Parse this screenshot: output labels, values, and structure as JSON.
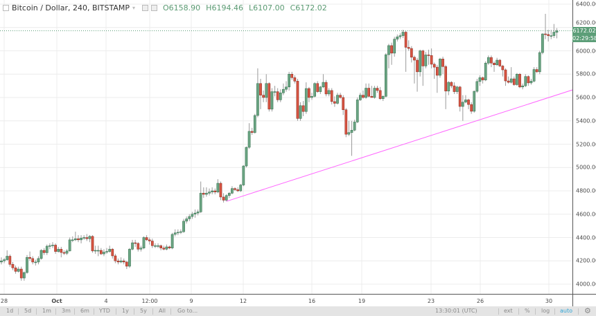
{
  "legend": {
    "symbol": "Bitcoin / Dollar, 240, BITSTAMP",
    "open_label": "O",
    "open": "6158.90",
    "high_label": "H",
    "high": "6194.46",
    "low_label": "L",
    "low": "6107.00",
    "close_label": "C",
    "close": "6172.02",
    "icons": [
      "collapse-icon",
      "dropdown-icon",
      "eye-icon",
      "settings-icon"
    ]
  },
  "price_labels": {
    "last_price": "6172.02",
    "countdown": "02:29:58"
  },
  "toolbar": {
    "ranges": [
      "1d",
      "5d",
      "1m",
      "3m",
      "6m",
      "YTD",
      "1y",
      "5y",
      "All",
      "Go to..."
    ],
    "clock": "13:30:01 (UTC)",
    "ext": "ext",
    "percent": "%",
    "log": "log",
    "auto": "auto",
    "settings_icon": "gear-icon"
  },
  "colors": {
    "up": "#6ba583",
    "down": "#d75442",
    "trendline": "#ff66ff",
    "last_price": "#5c9e78",
    "auto_active": "#2fa6d8"
  },
  "chart_data": {
    "type": "candlestick",
    "title": "Bitcoin / Dollar, 240, BITSTAMP",
    "interval": "240",
    "x_tick_labels": [
      "28",
      "Oct",
      "4",
      "12:00",
      "9",
      "12",
      "16",
      "19",
      "23",
      "26",
      "30"
    ],
    "y_tick_labels": [
      "4000.00",
      "4200.00",
      "4400.00",
      "4600.00",
      "4800.00",
      "5000.00",
      "5200.00",
      "5400.00",
      "5600.00",
      "5800.00",
      "6000.00",
      "6200.00",
      "6400.00"
    ],
    "ylim": [
      4000,
      6400
    ],
    "grid": true,
    "last_price": 6172.02,
    "trendline": {
      "from": {
        "candle": 79,
        "price": 4710
      },
      "to": {
        "candle": 200.5,
        "price": 5665
      }
    },
    "ohlc": [
      [
        4190,
        4230,
        4170,
        4200
      ],
      [
        4200,
        4225,
        4180,
        4210
      ],
      [
        4210,
        4290,
        4200,
        4240
      ],
      [
        4240,
        4255,
        4150,
        4170
      ],
      [
        4170,
        4190,
        4120,
        4140
      ],
      [
        4140,
        4160,
        4090,
        4110
      ],
      [
        4110,
        4150,
        4100,
        4130
      ],
      [
        4130,
        4150,
        4030,
        4053
      ],
      [
        4053,
        4110,
        4030,
        4100
      ],
      [
        4100,
        4250,
        4090,
        4230
      ],
      [
        4230,
        4280,
        4200,
        4220
      ],
      [
        4220,
        4240,
        4170,
        4190
      ],
      [
        4190,
        4210,
        4160,
        4190
      ],
      [
        4190,
        4240,
        4170,
        4220
      ],
      [
        4220,
        4300,
        4210,
        4290
      ],
      [
        4290,
        4310,
        4250,
        4270
      ],
      [
        4270,
        4340,
        4250,
        4326
      ],
      [
        4326,
        4350,
        4300,
        4330
      ],
      [
        4330,
        4360,
        4310,
        4335
      ],
      [
        4335,
        4350,
        4260,
        4280
      ],
      [
        4280,
        4320,
        4270,
        4300
      ],
      [
        4300,
        4320,
        4230,
        4272
      ],
      [
        4272,
        4290,
        4250,
        4265
      ],
      [
        4265,
        4300,
        4250,
        4285
      ],
      [
        4285,
        4400,
        4280,
        4380
      ],
      [
        4380,
        4410,
        4360,
        4380
      ],
      [
        4380,
        4450,
        4370,
        4390
      ],
      [
        4390,
        4420,
        4360,
        4380
      ],
      [
        4380,
        4420,
        4350,
        4395
      ],
      [
        4395,
        4420,
        4380,
        4400
      ],
      [
        4400,
        4430,
        4370,
        4390
      ],
      [
        4390,
        4420,
        4360,
        4410
      ],
      [
        4410,
        4420,
        4270,
        4285
      ],
      [
        4285,
        4330,
        4260,
        4290
      ],
      [
        4290,
        4330,
        4240,
        4290
      ],
      [
        4290,
        4310,
        4250,
        4260
      ],
      [
        4260,
        4300,
        4240,
        4275
      ],
      [
        4275,
        4310,
        4260,
        4280
      ],
      [
        4280,
        4330,
        4270,
        4300
      ],
      [
        4300,
        4310,
        4220,
        4243
      ],
      [
        4243,
        4260,
        4180,
        4200
      ],
      [
        4200,
        4220,
        4170,
        4190
      ],
      [
        4190,
        4230,
        4180,
        4200
      ],
      [
        4200,
        4220,
        4170,
        4190
      ],
      [
        4190,
        4200,
        4130,
        4154
      ],
      [
        4154,
        4310,
        4140,
        4300
      ],
      [
        4300,
        4380,
        4290,
        4355
      ],
      [
        4355,
        4380,
        4320,
        4350
      ],
      [
        4350,
        4360,
        4280,
        4300
      ],
      [
        4300,
        4330,
        4280,
        4310
      ],
      [
        4310,
        4410,
        4300,
        4400
      ],
      [
        4400,
        4420,
        4370,
        4380
      ],
      [
        4380,
        4400,
        4340,
        4370
      ],
      [
        4370,
        4390,
        4310,
        4330
      ],
      [
        4330,
        4350,
        4310,
        4330
      ],
      [
        4330,
        4350,
        4310,
        4330
      ],
      [
        4330,
        4340,
        4290,
        4310
      ],
      [
        4310,
        4330,
        4290,
        4300
      ],
      [
        4300,
        4340,
        4290,
        4320
      ],
      [
        4320,
        4330,
        4300,
        4310
      ],
      [
        4310,
        4440,
        4300,
        4427
      ],
      [
        4427,
        4470,
        4410,
        4440
      ],
      [
        4440,
        4470,
        4420,
        4445
      ],
      [
        4445,
        4470,
        4430,
        4450
      ],
      [
        4450,
        4560,
        4440,
        4540
      ],
      [
        4540,
        4580,
        4520,
        4560
      ],
      [
        4560,
        4600,
        4540,
        4580
      ],
      [
        4580,
        4620,
        4560,
        4600
      ],
      [
        4600,
        4640,
        4570,
        4610
      ],
      [
        4610,
        4640,
        4590,
        4620
      ],
      [
        4620,
        4880,
        4610,
        4780
      ],
      [
        4780,
        4830,
        4740,
        4770
      ],
      [
        4770,
        4830,
        4750,
        4780
      ],
      [
        4780,
        4820,
        4760,
        4790
      ],
      [
        4790,
        4830,
        4770,
        4800
      ],
      [
        4800,
        4820,
        4770,
        4790
      ],
      [
        4790,
        4900,
        4780,
        4865
      ],
      [
        4865,
        4880,
        4720,
        4747
      ],
      [
        4747,
        4780,
        4700,
        4720
      ],
      [
        4720,
        4770,
        4710,
        4760
      ],
      [
        4760,
        4790,
        4740,
        4780
      ],
      [
        4780,
        4840,
        4770,
        4820
      ],
      [
        4820,
        4830,
        4800,
        4810
      ],
      [
        4810,
        4830,
        4790,
        4800
      ],
      [
        4800,
        4860,
        4790,
        4850
      ],
      [
        4850,
        5020,
        4840,
        5013
      ],
      [
        5013,
        5180,
        5000,
        5173
      ],
      [
        5173,
        5380,
        5160,
        5310
      ],
      [
        5310,
        5340,
        5280,
        5300
      ],
      [
        5300,
        5460,
        5290,
        5446
      ],
      [
        5446,
        5850,
        5430,
        5720
      ],
      [
        5720,
        5760,
        5500,
        5620
      ],
      [
        5620,
        5660,
        5560,
        5600
      ],
      [
        5600,
        5800,
        5560,
        5720
      ],
      [
        5720,
        5730,
        5480,
        5500
      ],
      [
        5500,
        5680,
        5480,
        5650
      ],
      [
        5650,
        5700,
        5610,
        5650
      ],
      [
        5650,
        5680,
        5560,
        5580
      ],
      [
        5580,
        5670,
        5560,
        5640
      ],
      [
        5640,
        5720,
        5620,
        5670
      ],
      [
        5670,
        5740,
        5650,
        5690
      ],
      [
        5690,
        5820,
        5660,
        5800
      ],
      [
        5800,
        5820,
        5750,
        5770
      ],
      [
        5770,
        5790,
        5720,
        5740
      ],
      [
        5740,
        5760,
        5400,
        5420
      ],
      [
        5420,
        5560,
        5400,
        5530
      ],
      [
        5530,
        5570,
        5440,
        5480
      ],
      [
        5480,
        5730,
        5460,
        5677
      ],
      [
        5677,
        5690,
        5560,
        5600
      ],
      [
        5600,
        5640,
        5580,
        5610
      ],
      [
        5610,
        5730,
        5600,
        5720
      ],
      [
        5720,
        5740,
        5640,
        5650
      ],
      [
        5650,
        5700,
        5630,
        5690
      ],
      [
        5690,
        5800,
        5680,
        5730
      ],
      [
        5730,
        5750,
        5610,
        5630
      ],
      [
        5630,
        5680,
        5610,
        5660
      ],
      [
        5660,
        5680,
        5540,
        5565
      ],
      [
        5565,
        5610,
        5520,
        5550
      ],
      [
        5550,
        5640,
        5540,
        5620
      ],
      [
        5620,
        5640,
        5590,
        5600
      ],
      [
        5600,
        5620,
        5450,
        5495
      ],
      [
        5495,
        5510,
        5260,
        5285
      ],
      [
        5285,
        5400,
        5270,
        5300
      ],
      [
        5300,
        5400,
        5100,
        5320
      ],
      [
        5320,
        5410,
        5310,
        5390
      ],
      [
        5390,
        5600,
        5380,
        5580
      ],
      [
        5580,
        5640,
        5570,
        5620
      ],
      [
        5620,
        5660,
        5590,
        5600
      ],
      [
        5600,
        5720,
        5590,
        5680
      ],
      [
        5680,
        5720,
        5600,
        5610
      ],
      [
        5610,
        5700,
        5600,
        5600
      ],
      [
        5600,
        5700,
        5590,
        5680
      ],
      [
        5680,
        5700,
        5640,
        5660
      ],
      [
        5660,
        5690,
        5580,
        5590
      ],
      [
        5590,
        5620,
        5570,
        5610
      ],
      [
        5610,
        5980,
        5600,
        5967
      ],
      [
        5967,
        6060,
        5850,
        6045
      ],
      [
        6045,
        6070,
        5880,
        5980
      ],
      [
        5980,
        6120,
        5950,
        6100
      ],
      [
        6100,
        6140,
        6080,
        6120
      ],
      [
        6120,
        6150,
        6100,
        6130
      ],
      [
        6130,
        6180,
        6110,
        6160
      ],
      [
        6160,
        6170,
        5820,
        6030
      ],
      [
        6030,
        6090,
        6000,
        6020
      ],
      [
        6020,
        6040,
        5900,
        5945
      ],
      [
        5945,
        5960,
        5720,
        5920
      ],
      [
        5920,
        5940,
        5650,
        5820
      ],
      [
        5820,
        6010,
        5780,
        6000
      ],
      [
        6000,
        6010,
        5700,
        5870
      ],
      [
        5870,
        5990,
        5850,
        5965
      ],
      [
        5965,
        6010,
        5880,
        5960
      ],
      [
        5960,
        6020,
        5850,
        5885
      ],
      [
        5885,
        5900,
        5760,
        5860
      ],
      [
        5860,
        5880,
        5640,
        5790
      ],
      [
        5790,
        5940,
        5770,
        5930
      ],
      [
        5930,
        5950,
        5800,
        5865
      ],
      [
        5865,
        5880,
        5500,
        5655
      ],
      [
        5655,
        5740,
        5620,
        5730
      ],
      [
        5730,
        5740,
        5680,
        5700
      ],
      [
        5700,
        5730,
        5630,
        5650
      ],
      [
        5650,
        5700,
        5630,
        5690
      ],
      [
        5690,
        5700,
        5480,
        5523
      ],
      [
        5523,
        5620,
        5400,
        5560
      ],
      [
        5560,
        5620,
        5550,
        5580
      ],
      [
        5580,
        5590,
        5500,
        5540
      ],
      [
        5540,
        5560,
        5460,
        5482
      ],
      [
        5482,
        5660,
        5470,
        5653
      ],
      [
        5653,
        5760,
        5640,
        5737
      ],
      [
        5737,
        5790,
        5700,
        5770
      ],
      [
        5770,
        5780,
        5720,
        5750
      ],
      [
        5750,
        5910,
        5740,
        5895
      ],
      [
        5895,
        5960,
        5880,
        5943
      ],
      [
        5943,
        5960,
        5860,
        5895
      ],
      [
        5895,
        5910,
        5820,
        5880
      ],
      [
        5880,
        5940,
        5870,
        5920
      ],
      [
        5920,
        5930,
        5860,
        5870
      ],
      [
        5870,
        5880,
        5780,
        5837
      ],
      [
        5837,
        5850,
        5700,
        5742
      ],
      [
        5742,
        5780,
        5720,
        5730
      ],
      [
        5730,
        5860,
        5720,
        5760
      ],
      [
        5760,
        5780,
        5700,
        5710
      ],
      [
        5710,
        5810,
        5700,
        5800
      ],
      [
        5800,
        5810,
        5680,
        5690
      ],
      [
        5690,
        5720,
        5670,
        5700
      ],
      [
        5700,
        5800,
        5690,
        5780
      ],
      [
        5780,
        5790,
        5700,
        5725
      ],
      [
        5725,
        5760,
        5710,
        5740
      ],
      [
        5740,
        5860,
        5730,
        5840
      ],
      [
        5840,
        5860,
        5810,
        5820
      ],
      [
        5820,
        6000,
        5800,
        5985
      ],
      [
        5985,
        6150,
        5970,
        6145
      ],
      [
        6145,
        6317,
        6100,
        6140
      ],
      [
        6140,
        6180,
        6080,
        6130
      ],
      [
        6130,
        6180,
        6100,
        6130
      ],
      [
        6130,
        6230,
        6110,
        6160
      ],
      [
        6158.9,
        6194.46,
        6107,
        6172.02
      ]
    ]
  }
}
